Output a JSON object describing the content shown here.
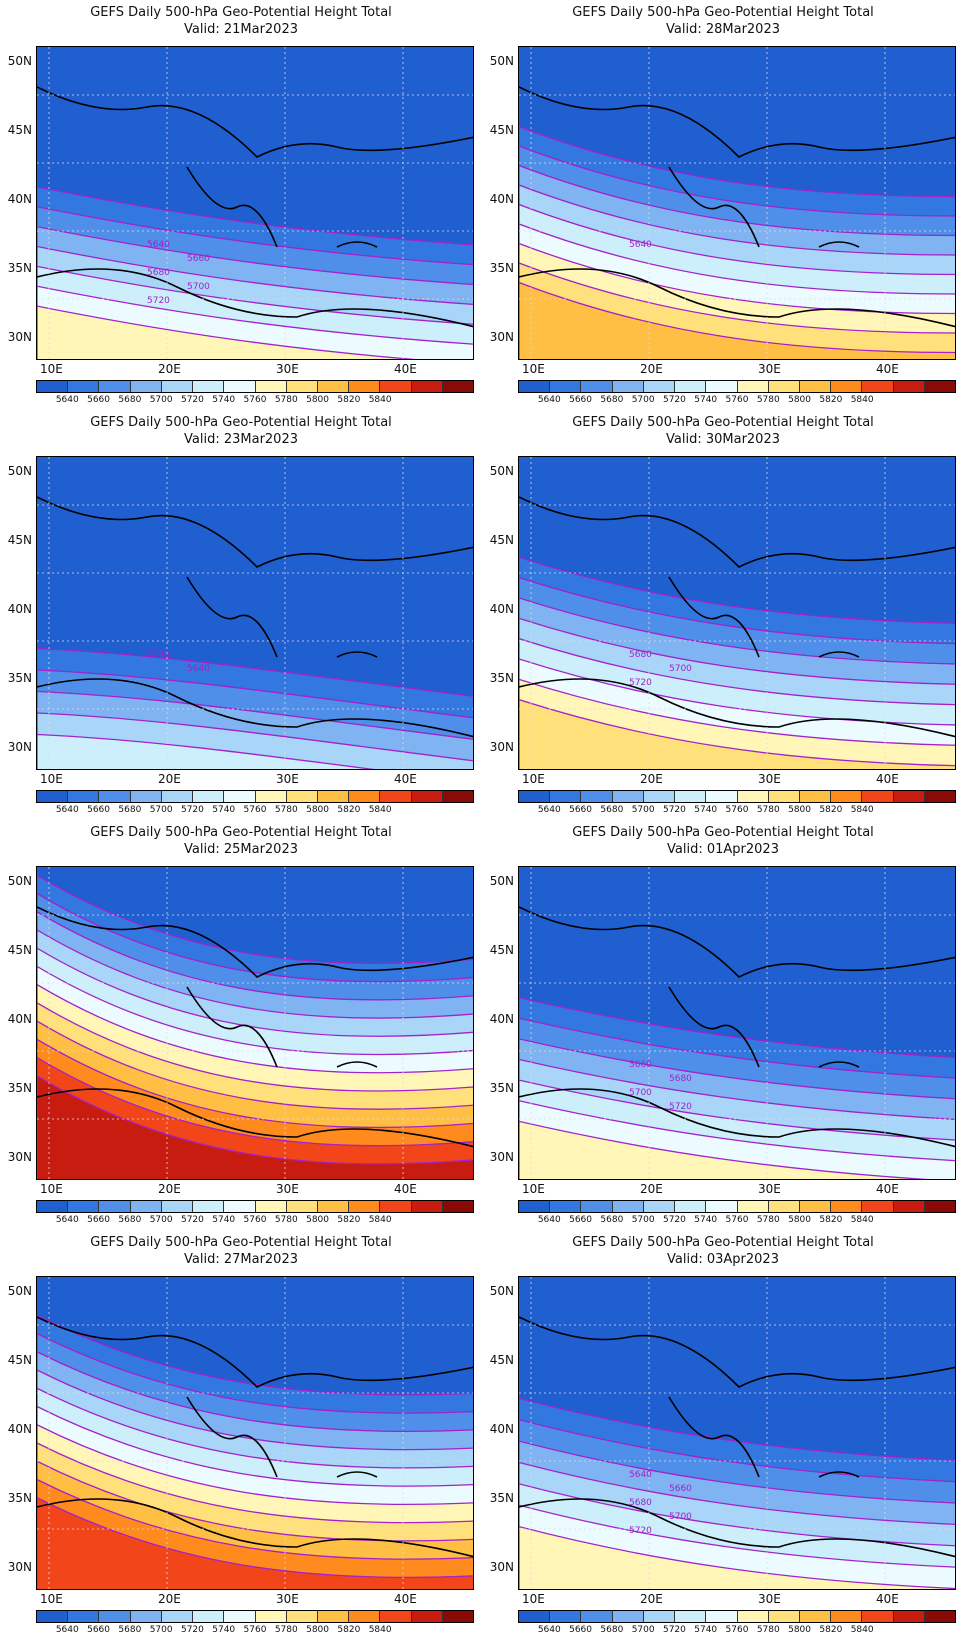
{
  "colorbar": {
    "colors": [
      "#1f5fd0",
      "#3377e0",
      "#4f8fea",
      "#7fb3f2",
      "#a8d5f8",
      "#cdeefb",
      "#ecfbff",
      "#fff6b8",
      "#ffe07a",
      "#ffbf45",
      "#ff8a1e",
      "#f2461a",
      "#c81c10",
      "#8a0a08"
    ],
    "labels": [
      "5640",
      "5660",
      "5680",
      "5700",
      "5720",
      "5740",
      "5760",
      "5780",
      "5800",
      "5820",
      "5840"
    ]
  },
  "axes": {
    "y_labels": [
      "50N",
      "45N",
      "40N",
      "35N",
      "30N"
    ],
    "x_labels": [
      "10E",
      "20E",
      "30E",
      "40E"
    ]
  },
  "panels": [
    {
      "title": "GEFS Daily 500-hPa Geo-Potential Height Total",
      "valid": "Valid: 21Mar2023",
      "contour_labels": [
        "5640",
        "5660",
        "5680",
        "5700",
        "5720"
      ],
      "warmth": 0.9
    },
    {
      "title": "GEFS Daily 500-hPa Geo-Potential Height Total",
      "valid": "Valid: 28Mar2023",
      "contour_labels": [
        "5640"
      ],
      "warmth": 1.5
    },
    {
      "title": "GEFS Daily 500-hPa Geo-Potential Height Total",
      "valid": "Valid: 23Mar2023",
      "contour_labels": [
        "5640",
        "5640"
      ],
      "warmth": 0.4
    },
    {
      "title": "GEFS Daily 500-hPa Geo-Potential Height Total",
      "valid": "Valid: 30Mar2023",
      "contour_labels": [
        "5680",
        "5700",
        "5720"
      ],
      "warmth": 1.3
    },
    {
      "title": "GEFS Daily 500-hPa Geo-Potential Height Total",
      "valid": "Valid: 25Mar2023",
      "contour_labels": [],
      "warmth": 2.2
    },
    {
      "title": "GEFS Daily 500-hPa Geo-Potential Height Total",
      "valid": "Valid: 01Apr2023",
      "contour_labels": [
        "5660",
        "5680",
        "5700",
        "5720"
      ],
      "warmth": 1.0
    },
    {
      "title": "GEFS Daily 500-hPa Geo-Potential Height Total",
      "valid": "Valid: 27Mar2023",
      "contour_labels": [],
      "warmth": 1.9
    },
    {
      "title": "GEFS Daily 500-hPa Geo-Potential Height Total",
      "valid": "Valid: 03Apr2023",
      "contour_labels": [
        "5640",
        "5660",
        "5680",
        "5700",
        "5720"
      ],
      "warmth": 1.1
    }
  ]
}
